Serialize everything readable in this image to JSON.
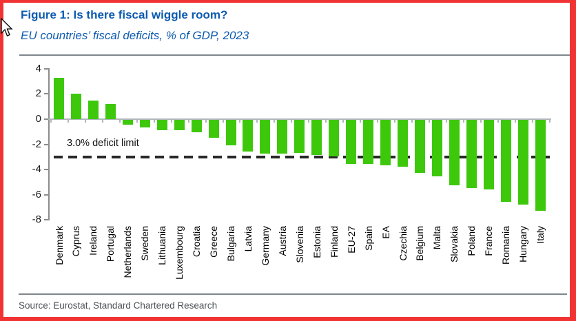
{
  "window": {
    "border_color": "#f23333",
    "background_color": "#ffffff"
  },
  "header": {
    "title": "Figure 1: Is there fiscal wiggle room?",
    "subtitle": "EU countries’ fiscal deficits, % of GDP, 2023",
    "title_color": "#0d5bb0"
  },
  "chart_data": {
    "type": "bar",
    "title": "Figure 1: Is there fiscal wiggle room?",
    "subtitle": "EU countries’ fiscal deficits, % of GDP, 2023",
    "xlabel": "",
    "ylabel": "",
    "categories": [
      "Denmark",
      "Cyprus",
      "Ireland",
      "Portugal",
      "Netherlands",
      "Sweden",
      "Lithuania",
      "Luxembourg",
      "Croatia",
      "Greece",
      "Bulgaria",
      "Latvia",
      "Germany",
      "Austria",
      "Slovenia",
      "Estonia",
      "Finland",
      "EU-27",
      "Spain",
      "EA",
      "Czechia",
      "Belgium",
      "Malta",
      "Slovakia",
      "Poland",
      "France",
      "Romania",
      "Hungary",
      "Italy"
    ],
    "values": [
      3.3,
      2.0,
      1.5,
      1.2,
      -0.4,
      -0.6,
      -0.8,
      -0.8,
      -1.0,
      -1.4,
      -2.0,
      -2.5,
      -2.7,
      -2.7,
      -2.6,
      -2.8,
      -2.9,
      -3.5,
      -3.5,
      -3.6,
      -3.7,
      -4.2,
      -4.5,
      -5.2,
      -5.4,
      -5.5,
      -6.5,
      -6.7,
      -7.2
    ],
    "ylim": [
      -8,
      4
    ],
    "yticks": [
      4,
      2,
      0,
      -2,
      -4,
      -6,
      -8
    ],
    "grid": false,
    "legend": null,
    "bar_color": "#3ec80c",
    "reference_line": {
      "value": -3.0,
      "label": "3.0% deficit limit",
      "style": "dashed",
      "color": "#282828"
    }
  },
  "footer": {
    "source": "Source: Eurostat, Standard Chartered Research"
  }
}
